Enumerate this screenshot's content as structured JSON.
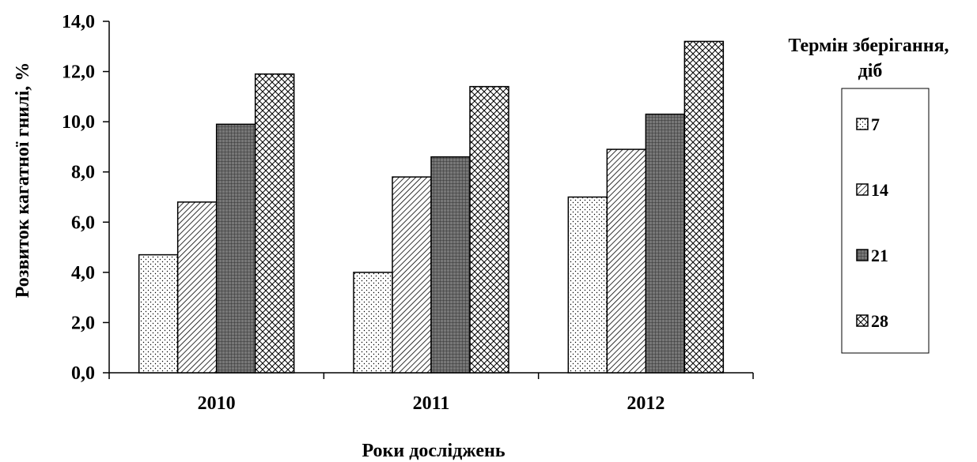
{
  "chart_data": {
    "type": "bar",
    "categories": [
      "2010",
      "2011",
      "2012"
    ],
    "series": [
      {
        "name": "7",
        "values": [
          4.7,
          4.0,
          7.0
        ],
        "pattern": "dots"
      },
      {
        "name": "14",
        "values": [
          6.8,
          7.8,
          8.9
        ],
        "pattern": "diagonal"
      },
      {
        "name": "21",
        "values": [
          9.9,
          8.6,
          10.3
        ],
        "pattern": "dense-grid"
      },
      {
        "name": "28",
        "values": [
          11.9,
          11.4,
          13.2
        ],
        "pattern": "crosshatch"
      }
    ],
    "xlabel": "Роки досліджень",
    "ylabel": "Розвиток кагатної гнилі, %",
    "ylim": [
      0,
      14
    ],
    "yticks": [
      "0,0",
      "2,0",
      "4,0",
      "6,0",
      "8,0",
      "10,0",
      "12,0",
      "14,0"
    ],
    "legend_title": "Термін зберігання, діб",
    "legend_position": "right",
    "grid": false
  }
}
